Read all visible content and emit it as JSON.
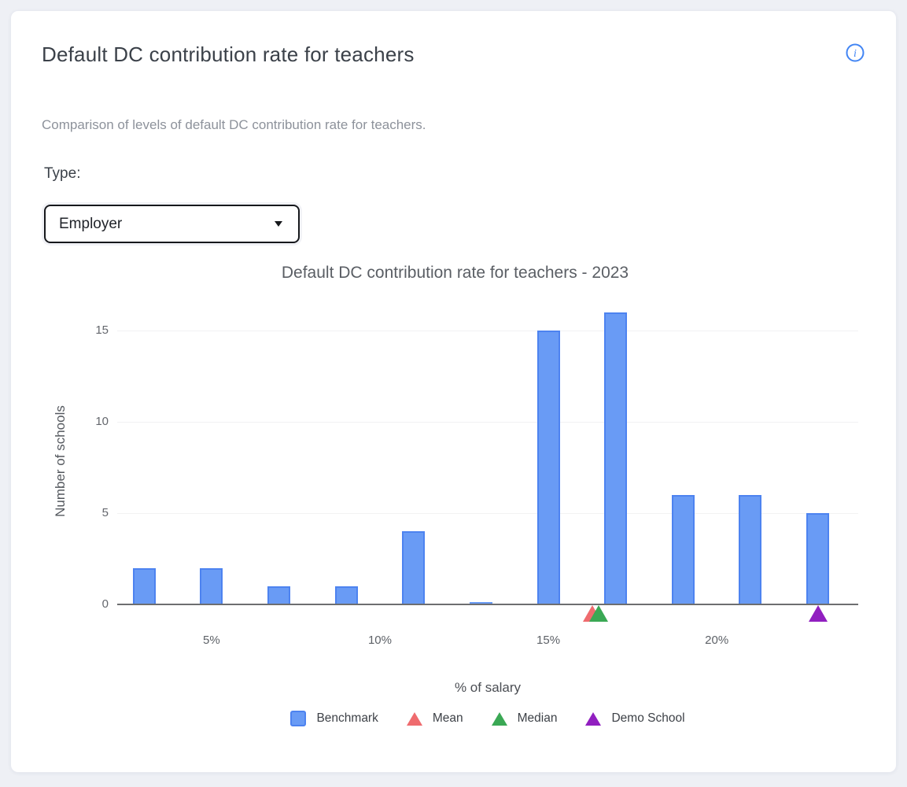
{
  "card": {
    "title": "Default DC contribution rate for teachers",
    "subtitle": "Comparison of levels of default DC contribution rate for teachers."
  },
  "controls": {
    "type_label": "Type:",
    "type_value": "Employer"
  },
  "chart_data": {
    "type": "bar",
    "title": "Default DC contribution rate for teachers - 2023",
    "xlabel": "% of salary",
    "ylabel": "Number of schools",
    "series_name": "Benchmark",
    "categories_percent": [
      3,
      5,
      7,
      9,
      11,
      13,
      15,
      17,
      19,
      21,
      23
    ],
    "values": [
      2,
      2,
      1,
      1,
      4,
      0,
      15,
      16,
      6,
      6,
      5
    ],
    "x_ticks": [
      5,
      10,
      15,
      20
    ],
    "x_tick_labels": [
      "5%",
      "10%",
      "15%",
      "20%"
    ],
    "y_ticks": [
      0,
      5,
      10,
      15
    ],
    "xlim": [
      2.2,
      24.2
    ],
    "ylim": [
      0,
      16.3
    ],
    "grid": true,
    "legend_position": "bottom",
    "markers": [
      {
        "name": "Mean",
        "value_percent": 16.3,
        "shape": "triangle",
        "color": "#ef6b6e"
      },
      {
        "name": "Median",
        "value_percent": 16.5,
        "shape": "triangle",
        "color": "#3aa854"
      },
      {
        "name": "Demo School",
        "value_percent": 23.0,
        "shape": "triangle",
        "color": "#911fc0"
      }
    ],
    "legend": [
      {
        "label": "Benchmark",
        "shape": "square",
        "color": "#699bf5",
        "border": "#4d83f0"
      },
      {
        "label": "Mean",
        "shape": "triangle",
        "color": "#ef6b6e"
      },
      {
        "label": "Median",
        "shape": "triangle",
        "color": "#3aa854"
      },
      {
        "label": "Demo School",
        "shape": "triangle",
        "color": "#911fc0"
      }
    ],
    "colors": {
      "bar_fill": "#699bf5",
      "bar_border": "#4d83f0",
      "gridline": "#f2f2f3",
      "baseline": "#6d6e70",
      "info_icon": "#4285f4"
    }
  }
}
